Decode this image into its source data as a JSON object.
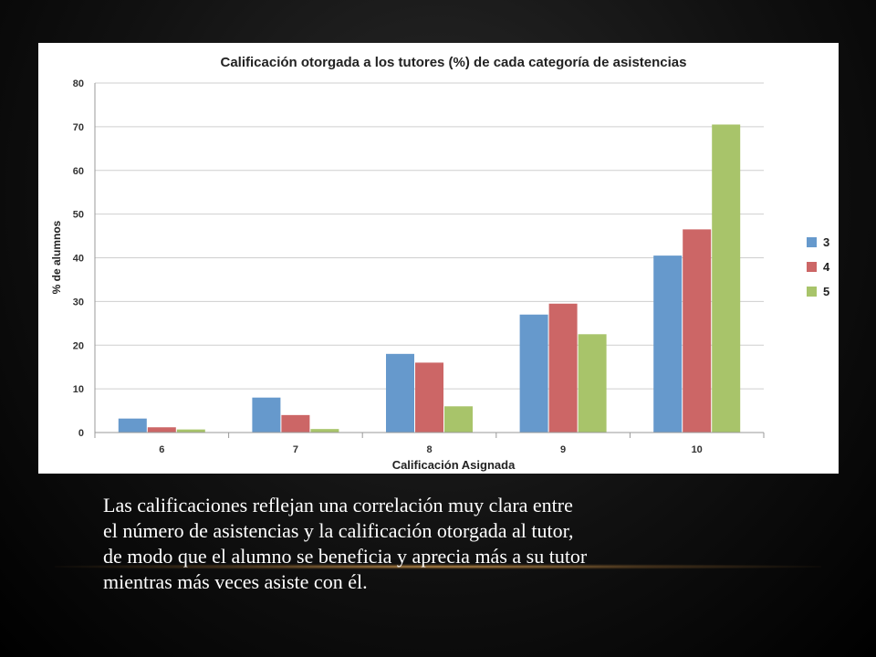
{
  "chart_data": {
    "type": "bar",
    "title": "Calificación otorgada a los tutores (%) de cada categoría de asistencias",
    "xlabel": "Calificación Asignada",
    "ylabel": "% de alumnos",
    "categories": [
      "6",
      "7",
      "8",
      "9",
      "10"
    ],
    "yticks": [
      "0",
      "10",
      "20",
      "30",
      "40",
      "50",
      "60",
      "70",
      "80"
    ],
    "ylim": [
      0,
      80
    ],
    "grid": true,
    "legend_position": "right",
    "series": [
      {
        "name": "3",
        "color": "#6699cc",
        "values": [
          3.2,
          8.0,
          18.0,
          27.0,
          40.5
        ]
      },
      {
        "name": "4",
        "color": "#cc6666",
        "values": [
          1.2,
          4.0,
          16.0,
          29.5,
          46.5
        ]
      },
      {
        "name": "5",
        "color": "#a8c46a",
        "values": [
          0.7,
          0.8,
          6.0,
          22.5,
          70.5
        ]
      }
    ]
  },
  "caption": {
    "lines": [
      "Las calificaciones reflejan una correlación muy clara entre",
      "el número de asistencias y la calificación otorgada al tutor,",
      "de modo que el alumno se beneficia y aprecia más a su tutor",
      "mientras más veces asiste con él."
    ]
  }
}
